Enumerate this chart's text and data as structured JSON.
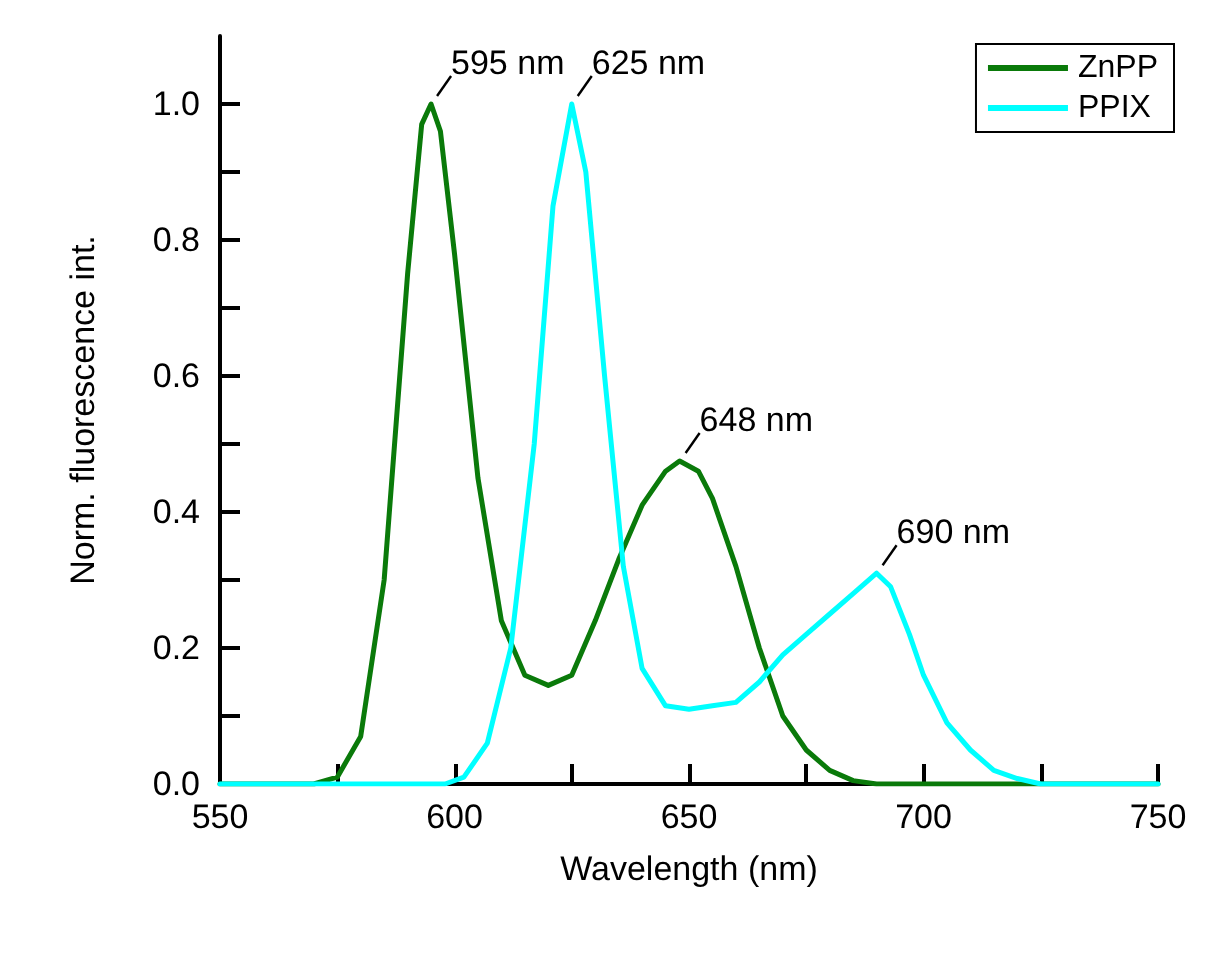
{
  "chart_data": {
    "type": "line",
    "xlabel": "Wavelength (nm)",
    "ylabel": "Norm. fluorescence int.",
    "xlim": [
      550,
      750
    ],
    "ylim": [
      0,
      1.1
    ],
    "xticks": [
      550,
      {
        "value": 575,
        "label": null
      },
      600,
      {
        "value": 625,
        "label": null
      },
      650,
      {
        "value": 675,
        "label": null
      },
      700,
      {
        "value": 725,
        "label": null
      },
      750
    ],
    "yticks": [
      {
        "value": 0,
        "label": "0.0"
      },
      {
        "value": 0.1,
        "label": null
      },
      0.2,
      {
        "value": 0.3,
        "label": null
      },
      0.4,
      {
        "value": 0.5,
        "label": null
      },
      0.6,
      {
        "value": 0.7,
        "label": null
      },
      0.8,
      {
        "value": 0.9,
        "label": null
      },
      {
        "value": 1,
        "label": "1.0"
      }
    ],
    "grid": false,
    "legend": "top right",
    "marker": "none",
    "line_style": "solid",
    "series": [
      {
        "name": "ZnPP",
        "color": "#0a7a0a",
        "x": [
          550,
          570,
          575,
          580,
          585,
          590,
          593,
          595,
          597,
          600,
          605,
          610,
          615,
          620,
          625,
          630,
          635,
          640,
          645,
          648,
          652,
          655,
          660,
          665,
          670,
          675,
          680,
          685,
          690,
          750
        ],
        "values": [
          0,
          0,
          0.01,
          0.07,
          0.3,
          0.75,
          0.97,
          1.0,
          0.96,
          0.78,
          0.45,
          0.24,
          0.16,
          0.145,
          0.16,
          0.24,
          0.33,
          0.41,
          0.46,
          0.475,
          0.46,
          0.42,
          0.32,
          0.2,
          0.1,
          0.05,
          0.02,
          0.005,
          0,
          0
        ]
      },
      {
        "name": "PPIX",
        "color": "#00ffff",
        "x": [
          550,
          598,
          602,
          607,
          612,
          617,
          621,
          625,
          628,
          632,
          636,
          640,
          645,
          650,
          655,
          660,
          665,
          670,
          675,
          680,
          685,
          690,
          693,
          697,
          700,
          705,
          710,
          715,
          720,
          725,
          750
        ],
        "values": [
          0,
          0,
          0.01,
          0.06,
          0.2,
          0.5,
          0.85,
          1.0,
          0.9,
          0.6,
          0.32,
          0.17,
          0.115,
          0.11,
          0.115,
          0.12,
          0.15,
          0.19,
          0.22,
          0.25,
          0.28,
          0.31,
          0.29,
          0.22,
          0.16,
          0.09,
          0.05,
          0.02,
          0.008,
          0,
          0
        ]
      }
    ],
    "annotations": [
      {
        "text": "595 nm",
        "x": 595,
        "y": 1.0
      },
      {
        "text": "625 nm",
        "x": 625,
        "y": 1.0
      },
      {
        "text": "648 nm",
        "x": 648,
        "y": 0.475
      },
      {
        "text": "690 nm",
        "x": 690,
        "y": 0.31
      }
    ]
  }
}
